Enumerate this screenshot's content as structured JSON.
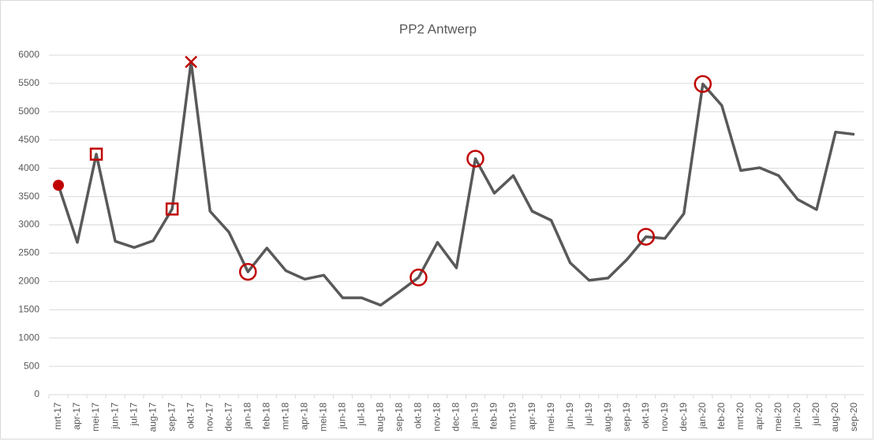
{
  "chart_data": {
    "type": "line",
    "title": "PP2 Antwerp",
    "categories": [
      "mrt-17",
      "apr-17",
      "mei-17",
      "jun-17",
      "jul-17",
      "aug-17",
      "sep-17",
      "okt-17",
      "nov-17",
      "dec-17",
      "jan-18",
      "feb-18",
      "mrt-18",
      "apr-18",
      "mei-18",
      "jun-18",
      "jul-18",
      "aug-18",
      "sep-18",
      "okt-18",
      "nov-18",
      "dec-18",
      "jan-19",
      "feb-19",
      "mrt-19",
      "apr-19",
      "mei-19",
      "jun-19",
      "jul-19",
      "aug-19",
      "sep-19",
      "okt-19",
      "nov-19",
      "dec-19",
      "jan-20",
      "feb-20",
      "mrt-20",
      "apr-20",
      "mei-20",
      "jun-20",
      "jul-20",
      "aug-20",
      "sep-20"
    ],
    "series": [
      {
        "color": "#595959",
        "values": [
          3700,
          2690,
          4250,
          2710,
          2600,
          2720,
          3280,
          5880,
          3240,
          2870,
          2170,
          2590,
          2190,
          2040,
          2110,
          1710,
          1710,
          1580,
          1820,
          2070,
          2690,
          2240,
          4170,
          3560,
          3870,
          3240,
          3080,
          2330,
          2020,
          2060,
          2390,
          2790,
          2760,
          3200,
          5490,
          5110,
          3960,
          4010,
          3870,
          3450,
          3270,
          4640,
          4600
        ]
      }
    ],
    "markers": [
      {
        "symbol": "filled-circle",
        "indices": [
          0
        ]
      },
      {
        "symbol": "square",
        "indices": [
          2,
          6
        ]
      },
      {
        "symbol": "cross",
        "indices": [
          7
        ]
      },
      {
        "symbol": "circle",
        "indices": [
          10,
          19,
          22,
          31,
          34
        ]
      }
    ],
    "marker_color": "#c00000",
    "ylim": [
      0,
      6000
    ],
    "yticks": [
      0,
      500,
      1000,
      1500,
      2000,
      2500,
      3000,
      3500,
      4000,
      4500,
      5000,
      5500,
      6000
    ],
    "grid": true
  }
}
